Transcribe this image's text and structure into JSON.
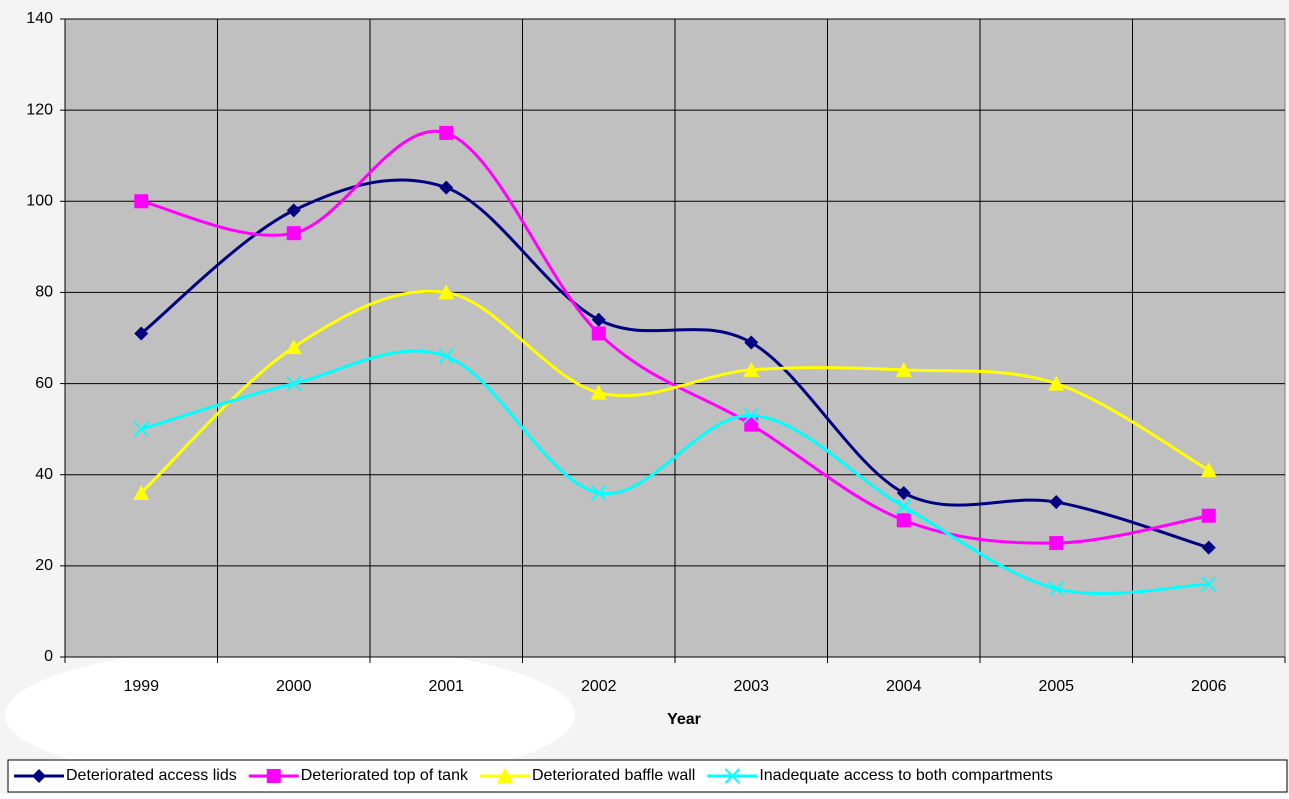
{
  "chart_data": {
    "type": "line",
    "x_label": "Year",
    "categories": [
      "1999",
      "2000",
      "2001",
      "2002",
      "2003",
      "2004",
      "2005",
      "2006"
    ],
    "series": [
      {
        "name": "Deteriorated access lids",
        "color": "#000080",
        "marker": "diamond",
        "values": [
          71,
          98,
          103,
          74,
          69,
          36,
          34,
          24
        ]
      },
      {
        "name": "Deteriorated top of tank",
        "color": "#ff00ff",
        "marker": "square",
        "values": [
          100,
          93,
          115,
          71,
          51,
          30,
          25,
          31
        ]
      },
      {
        "name": "Deteriorated baffle wall",
        "color": "#ffff00",
        "marker": "triangle",
        "values": [
          36,
          68,
          80,
          58,
          63,
          63,
          60,
          41
        ]
      },
      {
        "name": "Inadequate access to both compartments",
        "color": "#00ffff",
        "marker": "x",
        "values": [
          50,
          60,
          66,
          36,
          53,
          33,
          15,
          16
        ]
      }
    ],
    "ylim": [
      0,
      140
    ],
    "yticks": [
      0,
      20,
      40,
      60,
      80,
      100,
      120,
      140
    ],
    "grid": true,
    "smooth": true,
    "legend": "bottom"
  }
}
